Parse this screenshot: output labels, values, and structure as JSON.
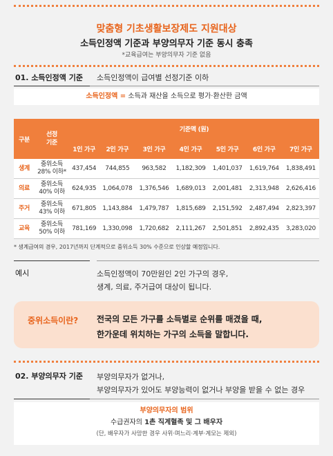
{
  "header": {
    "title": "맞춤형 기초생활보장제도 지원대상",
    "subtitle": "소득인정액 기준과 부양의무자 기준 동시 충족",
    "note": "*교육급여는 부양의무자 기준 없음"
  },
  "section1": {
    "heading": "01. 소득인정액 기준",
    "text": "소득인정액이 급여별 선정기준 이하",
    "definition": {
      "term": "소득인정액 =",
      "text": "소득과 재산을 소득으로 평가·환산한 금액"
    }
  },
  "table": {
    "col_group": "구분",
    "col_criteria": [
      "선정",
      "기준"
    ],
    "amount_header": "기준액 (원)",
    "households": [
      "1인 가구",
      "2인 가구",
      "3인 가구",
      "4인 가구",
      "5인 가구",
      "6인 가구",
      "7인 가구"
    ],
    "rows": [
      {
        "label": "생계",
        "criteria": [
          "중위소득",
          "28% 이하*"
        ],
        "values": [
          "437,454",
          "744,855",
          "963,582",
          "1,182,309",
          "1,401,037",
          "1,619,764",
          "1,838,491"
        ]
      },
      {
        "label": "의료",
        "criteria": [
          "중위소득",
          "40% 이하"
        ],
        "values": [
          "624,935",
          "1,064,078",
          "1,376,546",
          "1,689,013",
          "2,001,481",
          "2,313,948",
          "2,626,416"
        ]
      },
      {
        "label": "주거",
        "criteria": [
          "중위소득",
          "43% 이하"
        ],
        "values": [
          "671,805",
          "1,143,884",
          "1,479,787",
          "1,815,689",
          "2,151,592",
          "2,487,494",
          "2,823,397"
        ]
      },
      {
        "label": "교육",
        "criteria": [
          "중위소득",
          "50% 이하"
        ],
        "values": [
          "781,169",
          "1,330,098",
          "1,720,682",
          "2,111,267",
          "2,501,851",
          "2,892,435",
          "3,283,020"
        ]
      }
    ],
    "footnote": "* 생계급여의 경우, 2017년까지 단계적으로 중위소득 30% 수준으로 인상할 예정입니다."
  },
  "example": {
    "label": "예시",
    "lines": [
      "소득인정액이 70만원인 2인 가구의 경우,",
      "생계, 의료, 주거급여 대상이 됩니다."
    ]
  },
  "median": {
    "label": "중위소득이란?",
    "lines": [
      "전국의 모든 가구를 소득별로 순위를 매겼을 때,",
      "한가운데 위치하는 가구의 소득을 말합니다."
    ]
  },
  "section2": {
    "heading": "02. 부양의무자 기준",
    "lines": [
      "부양의무자가 없거나,",
      "부양의무자가 있어도 부양능력이 없거나 부양을 받을 수 없는 경우"
    ],
    "box": {
      "title": "부양의무자의 범위",
      "line1": [
        "수급권자의 ",
        "1촌 직계혈족",
        " 및 ",
        "그 배우자"
      ],
      "line2": "(단, 배우자가 사망한 경우 사위·며느리·계부·계모는 제외)"
    }
  }
}
